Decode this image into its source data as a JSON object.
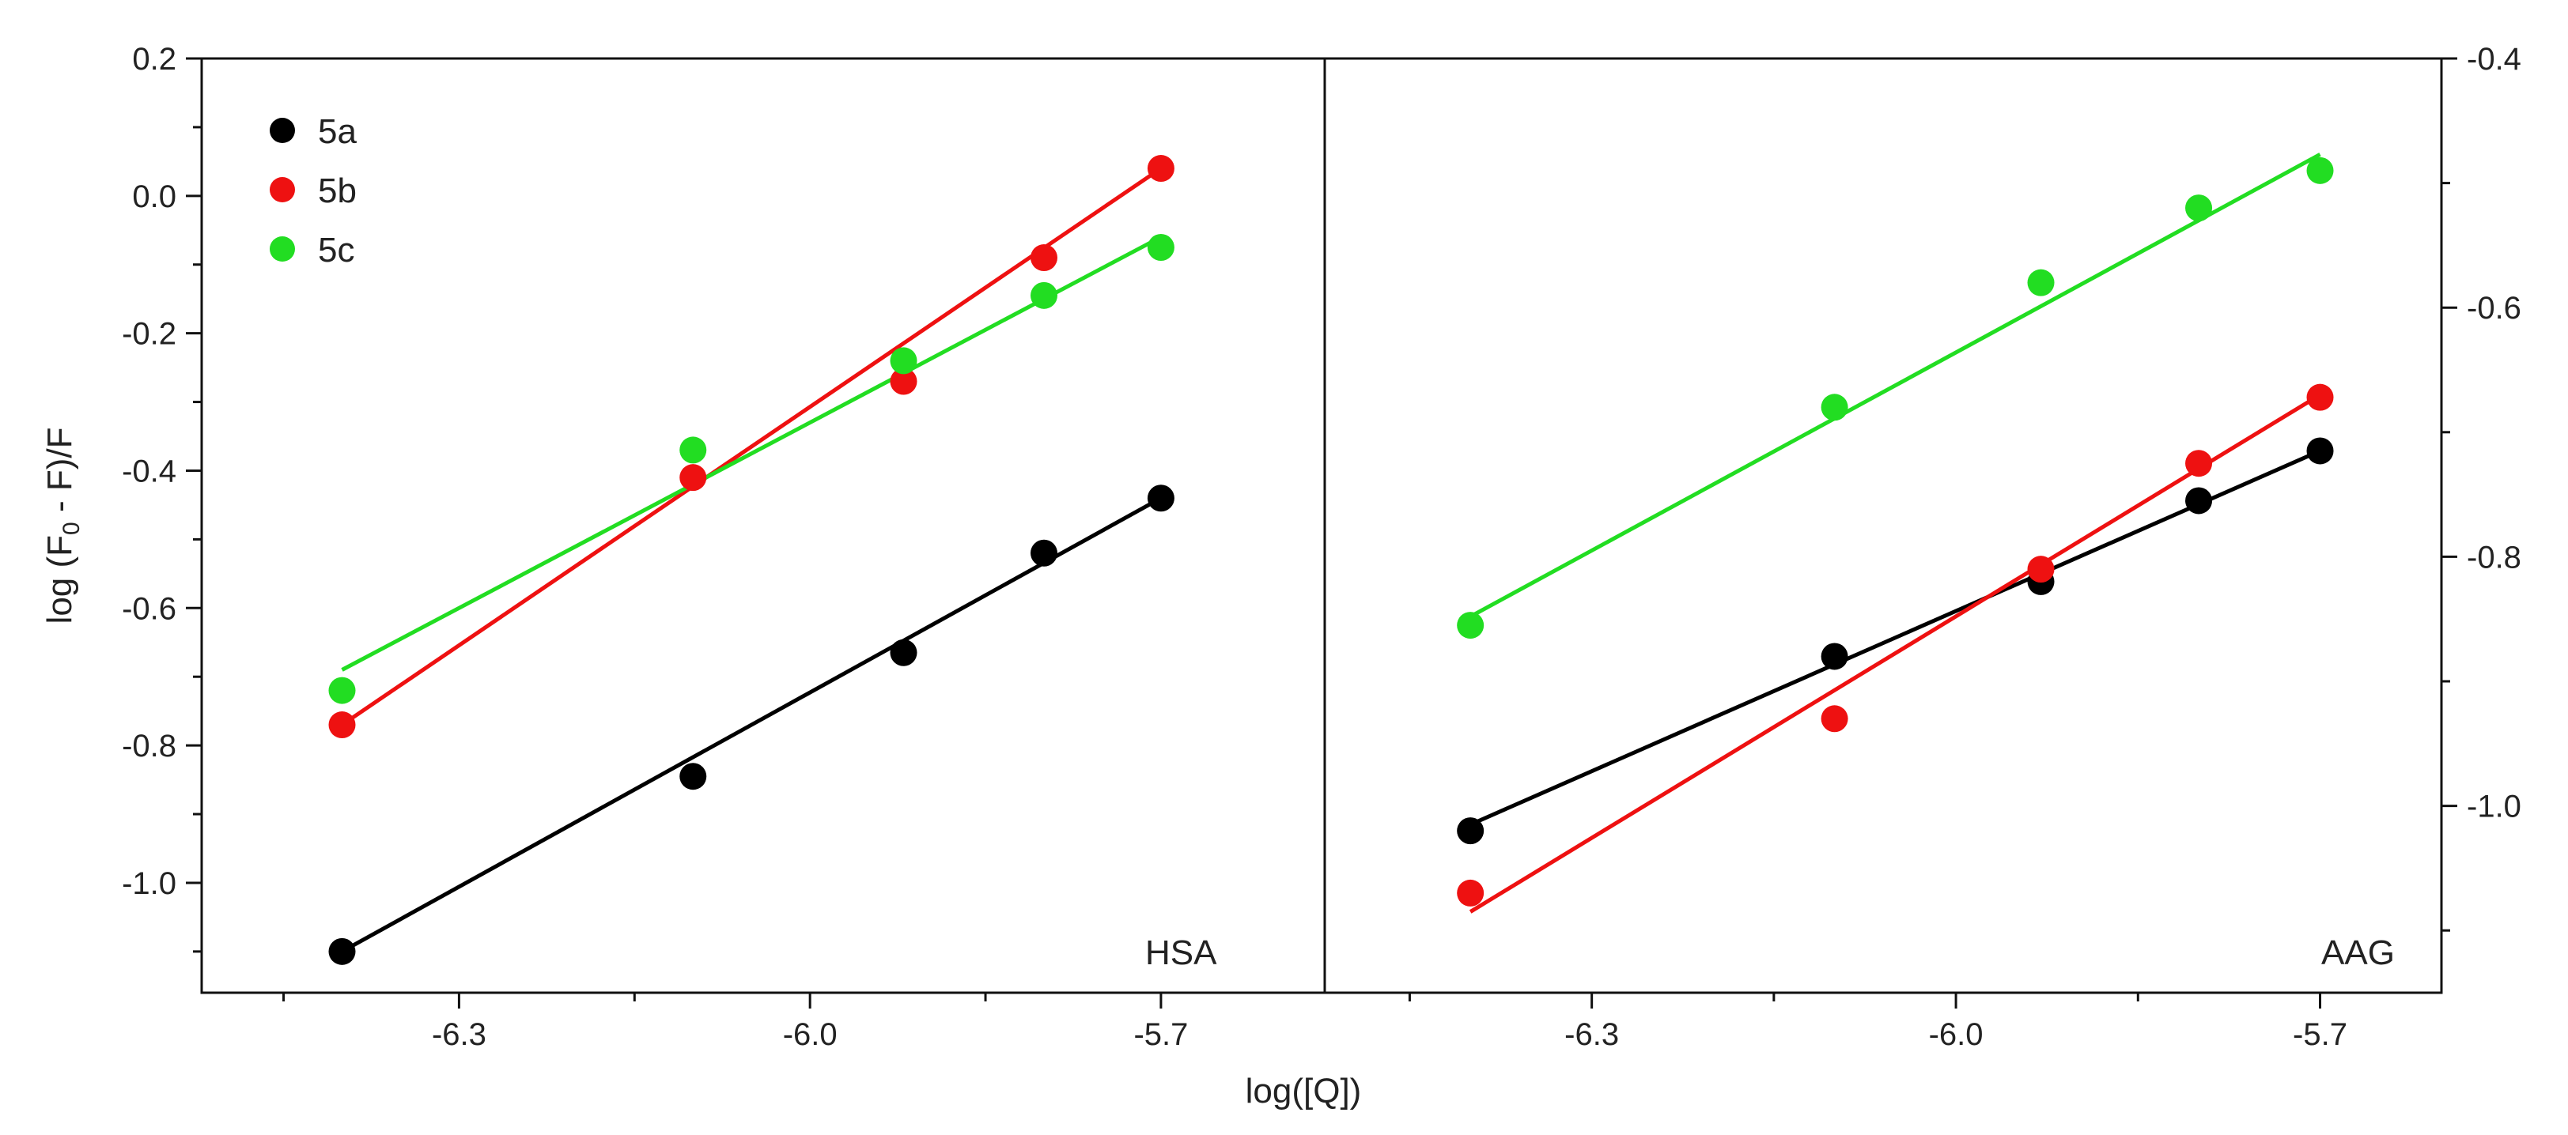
{
  "figure": {
    "xlabel": "log([Q])",
    "ylabel_main": "log (F",
    "ylabel_sub": "0",
    "ylabel_tail": " - F)/F"
  },
  "legend": [
    {
      "label": "5a",
      "color": "#000000"
    },
    {
      "label": "5b",
      "color": "#ee1111"
    },
    {
      "label": "5c",
      "color": "#22dd22"
    }
  ],
  "chart_data": [
    {
      "type": "scatter",
      "panel": "HSA",
      "title": "HSA",
      "xlabel": "log([Q])",
      "ylabel": "log (F0 - F)/F",
      "xlim": [
        -6.52,
        -5.56
      ],
      "ylim": [
        -1.16,
        0.2
      ],
      "xticks": [
        -6.3,
        -6.0,
        -5.7
      ],
      "xtick_labels": [
        "-6.3",
        "-6.0",
        "-5.7"
      ],
      "yticks": [
        0.2,
        0.0,
        -0.2,
        -0.4,
        -0.6,
        -0.8,
        -1.0
      ],
      "ytick_labels": [
        "0.2",
        "0.0",
        "-0.2",
        "-0.4",
        "-0.6",
        "-0.8",
        "-1.0"
      ],
      "y_axis_side": "left",
      "legend_position": "top-left",
      "series": [
        {
          "name": "5a",
          "color": "#000000",
          "x": [
            -6.4,
            -6.1,
            -5.92,
            -5.8,
            -5.7
          ],
          "y": [
            -1.1,
            -0.845,
            -0.665,
            -0.52,
            -0.44
          ],
          "fit": [
            [
              -6.4,
              -1.1
            ],
            [
              -5.7,
              -0.44
            ]
          ]
        },
        {
          "name": "5b",
          "color": "#ee1111",
          "x": [
            -6.4,
            -6.1,
            -5.92,
            -5.8,
            -5.7
          ],
          "y": [
            -0.77,
            -0.41,
            -0.27,
            -0.09,
            0.04
          ],
          "fit": [
            [
              -6.4,
              -0.77
            ],
            [
              -5.7,
              0.04
            ]
          ]
        },
        {
          "name": "5c",
          "color": "#22dd22",
          "x": [
            -6.4,
            -6.1,
            -5.92,
            -5.8,
            -5.7
          ],
          "y": [
            -0.72,
            -0.37,
            -0.24,
            -0.145,
            -0.075
          ],
          "fit": [
            [
              -6.4,
              -0.69
            ],
            [
              -5.7,
              -0.06
            ]
          ]
        }
      ]
    },
    {
      "type": "scatter",
      "panel": "AAG",
      "title": "AAG",
      "xlabel": "log([Q])",
      "ylabel": "",
      "xlim": [
        -6.52,
        -5.6
      ],
      "ylim": [
        -1.15,
        -0.4
      ],
      "xticks": [
        -6.3,
        -6.0,
        -5.7
      ],
      "xtick_labels": [
        "-6.3",
        "-6.0",
        "-5.7"
      ],
      "yticks": [
        -0.4,
        -0.6,
        -0.8,
        -1.0
      ],
      "ytick_labels": [
        "-0.4",
        "-0.6",
        "-0.8",
        "-1.0"
      ],
      "y_axis_side": "right",
      "series": [
        {
          "name": "5a",
          "color": "#000000",
          "x": [
            -6.4,
            -6.1,
            -5.93,
            -5.8,
            -5.7
          ],
          "y": [
            -1.02,
            -0.88,
            -0.82,
            -0.755,
            -0.715
          ],
          "fit": [
            [
              -6.4,
              -1.015
            ],
            [
              -5.7,
              -0.715
            ]
          ]
        },
        {
          "name": "5b",
          "color": "#ee1111",
          "x": [
            -6.4,
            -6.1,
            -5.93,
            -5.8,
            -5.7
          ],
          "y": [
            -1.07,
            -0.93,
            -0.81,
            -0.725,
            -0.672
          ],
          "fit": [
            [
              -6.4,
              -1.085
            ],
            [
              -5.7,
              -0.67
            ]
          ]
        },
        {
          "name": "5c",
          "color": "#22dd22",
          "x": [
            -6.4,
            -6.1,
            -5.93,
            -5.8,
            -5.7
          ],
          "y": [
            -0.855,
            -0.68,
            -0.58,
            -0.52,
            -0.49
          ],
          "fit": [
            [
              -6.4,
              -0.848
            ],
            [
              -5.7,
              -0.477
            ]
          ]
        }
      ]
    }
  ]
}
